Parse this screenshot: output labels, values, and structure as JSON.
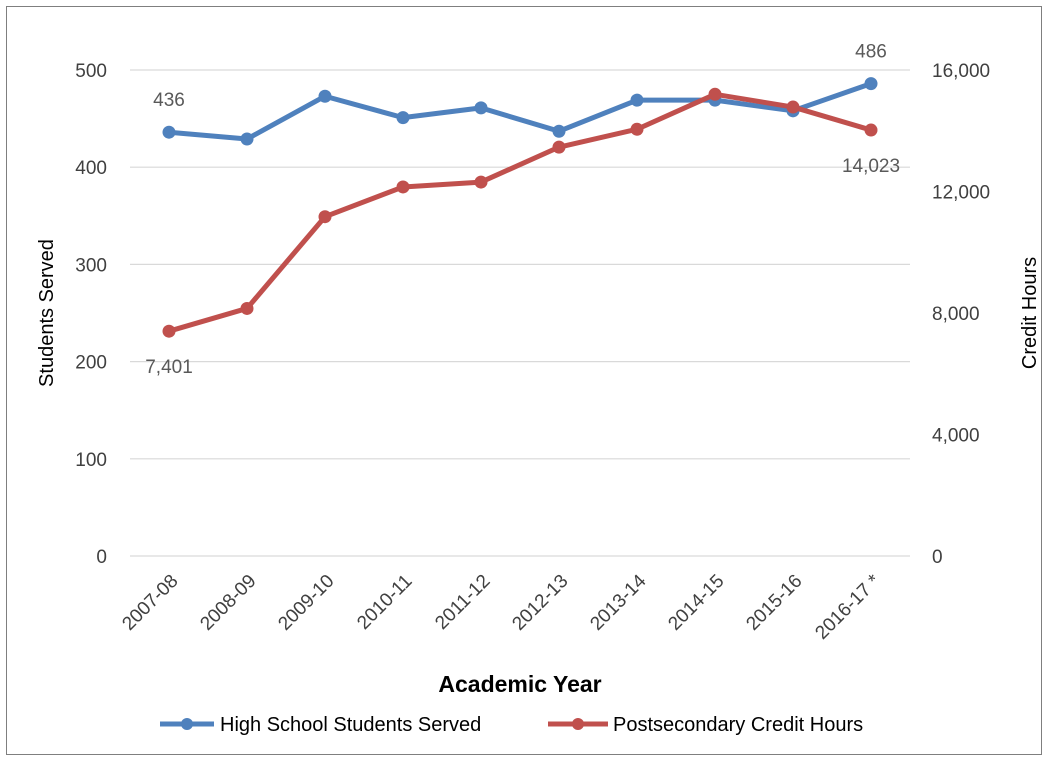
{
  "chart_data": {
    "type": "line",
    "x_title": "Academic Year",
    "y_left_title": "Students Served",
    "y_right_title": "Credit Hours",
    "y_left_range": [
      0,
      500
    ],
    "y_left_ticks": [
      "0",
      "100",
      "200",
      "300",
      "400",
      "500"
    ],
    "y_right_range": [
      0,
      16000
    ],
    "y_right_ticks": [
      "0",
      "4,000",
      "8,000",
      "12,000",
      "16,000"
    ],
    "categories": [
      "2007-08",
      "2008-09",
      "2009-10",
      "2010-11",
      "2011-12",
      "2012-13",
      "2013-14",
      "2014-15",
      "2015-16",
      "2016-17 *"
    ],
    "series": [
      {
        "name": "High School Students Served",
        "axis": "left",
        "color": "#4f81bd",
        "values": [
          436,
          429,
          473,
          451,
          461,
          437,
          469,
          469,
          458,
          486
        ]
      },
      {
        "name": "Postsecondary Credit Hours",
        "axis": "right",
        "color": "#c0504d",
        "values": [
          7401,
          8150,
          11170,
          12150,
          12310,
          13460,
          14050,
          15200,
          14780,
          14023
        ]
      }
    ],
    "data_labels": [
      {
        "series": 0,
        "index": 0,
        "text": "436"
      },
      {
        "series": 0,
        "index": 9,
        "text": "486"
      },
      {
        "series": 1,
        "index": 0,
        "text": "7,401"
      },
      {
        "series": 1,
        "index": 9,
        "text": "14,023"
      }
    ],
    "grid": true,
    "legend_position": "bottom"
  }
}
